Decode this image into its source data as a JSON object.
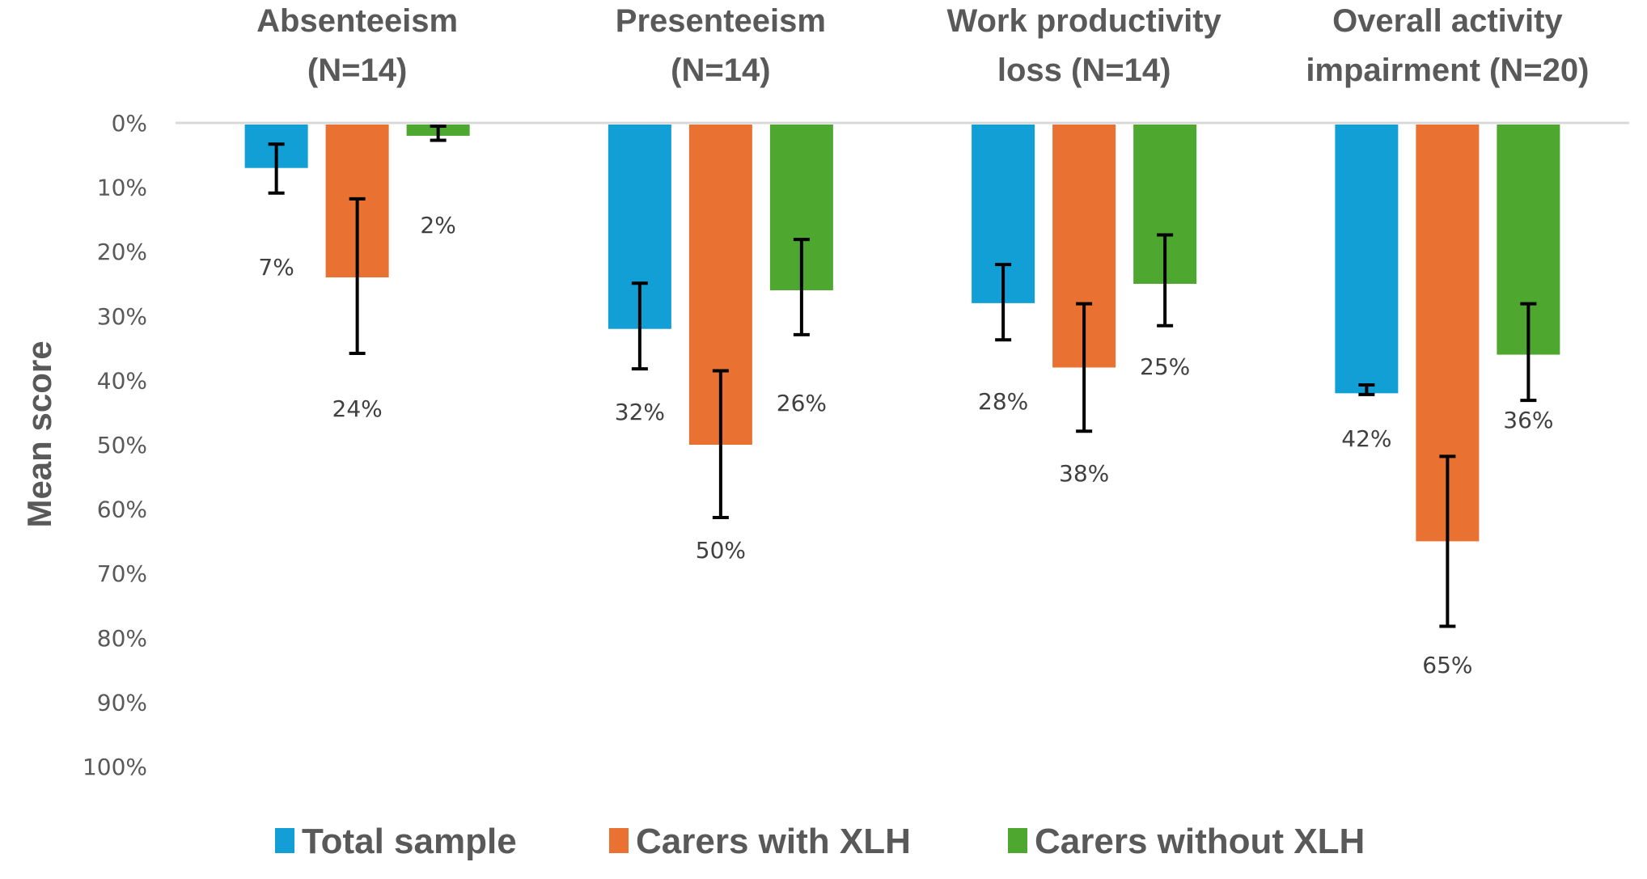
{
  "chart_data": {
    "type": "bar",
    "orientation": "vertical-inverted",
    "title": "",
    "xlabel": "",
    "ylabel": "Mean score",
    "ylim": [
      0,
      100
    ],
    "y_axis_reversed": true,
    "y_ticks": [
      "0%",
      "10%",
      "20%",
      "30%",
      "40%",
      "50%",
      "60%",
      "70%",
      "80%",
      "90%",
      "100%"
    ],
    "y_tick_values": [
      0,
      10,
      20,
      30,
      40,
      50,
      60,
      70,
      80,
      90,
      100
    ],
    "grid": false,
    "legend_position": "bottom",
    "categories": [
      [
        "Absenteeism",
        "(N=14)"
      ],
      [
        "Presenteeism",
        "(N=14)"
      ],
      [
        "Work productivity",
        "loss  (N=14)"
      ],
      [
        "Overall activity",
        "impairment (N=20)"
      ]
    ],
    "series": [
      {
        "name": "Total sample",
        "color": "#129FD6",
        "values": [
          7,
          32,
          28,
          42
        ],
        "labels": [
          "7%",
          "32%",
          "28%",
          "42%"
        ],
        "error_low": [
          3.3,
          24.9,
          22.0,
          40.7
        ],
        "error_high": [
          10.9,
          38.2,
          33.7,
          42.2
        ]
      },
      {
        "name": "Carers with XLH",
        "color": "#E97132",
        "values": [
          24,
          50,
          38,
          65
        ],
        "labels": [
          "24%",
          "50%",
          "38%",
          "65%"
        ],
        "error_low": [
          11.8,
          38.5,
          28.1,
          51.8
        ],
        "error_high": [
          35.8,
          61.3,
          47.9,
          78.2
        ]
      },
      {
        "name": "Carers without XLH",
        "color": "#4EA72E",
        "values": [
          2,
          26,
          25,
          36
        ],
        "labels": [
          "2%",
          "26%",
          "25%",
          "36%"
        ],
        "error_low": [
          0.5,
          18.1,
          17.4,
          28.1
        ],
        "error_high": [
          2.7,
          32.9,
          31.5,
          43.1
        ]
      }
    ]
  }
}
